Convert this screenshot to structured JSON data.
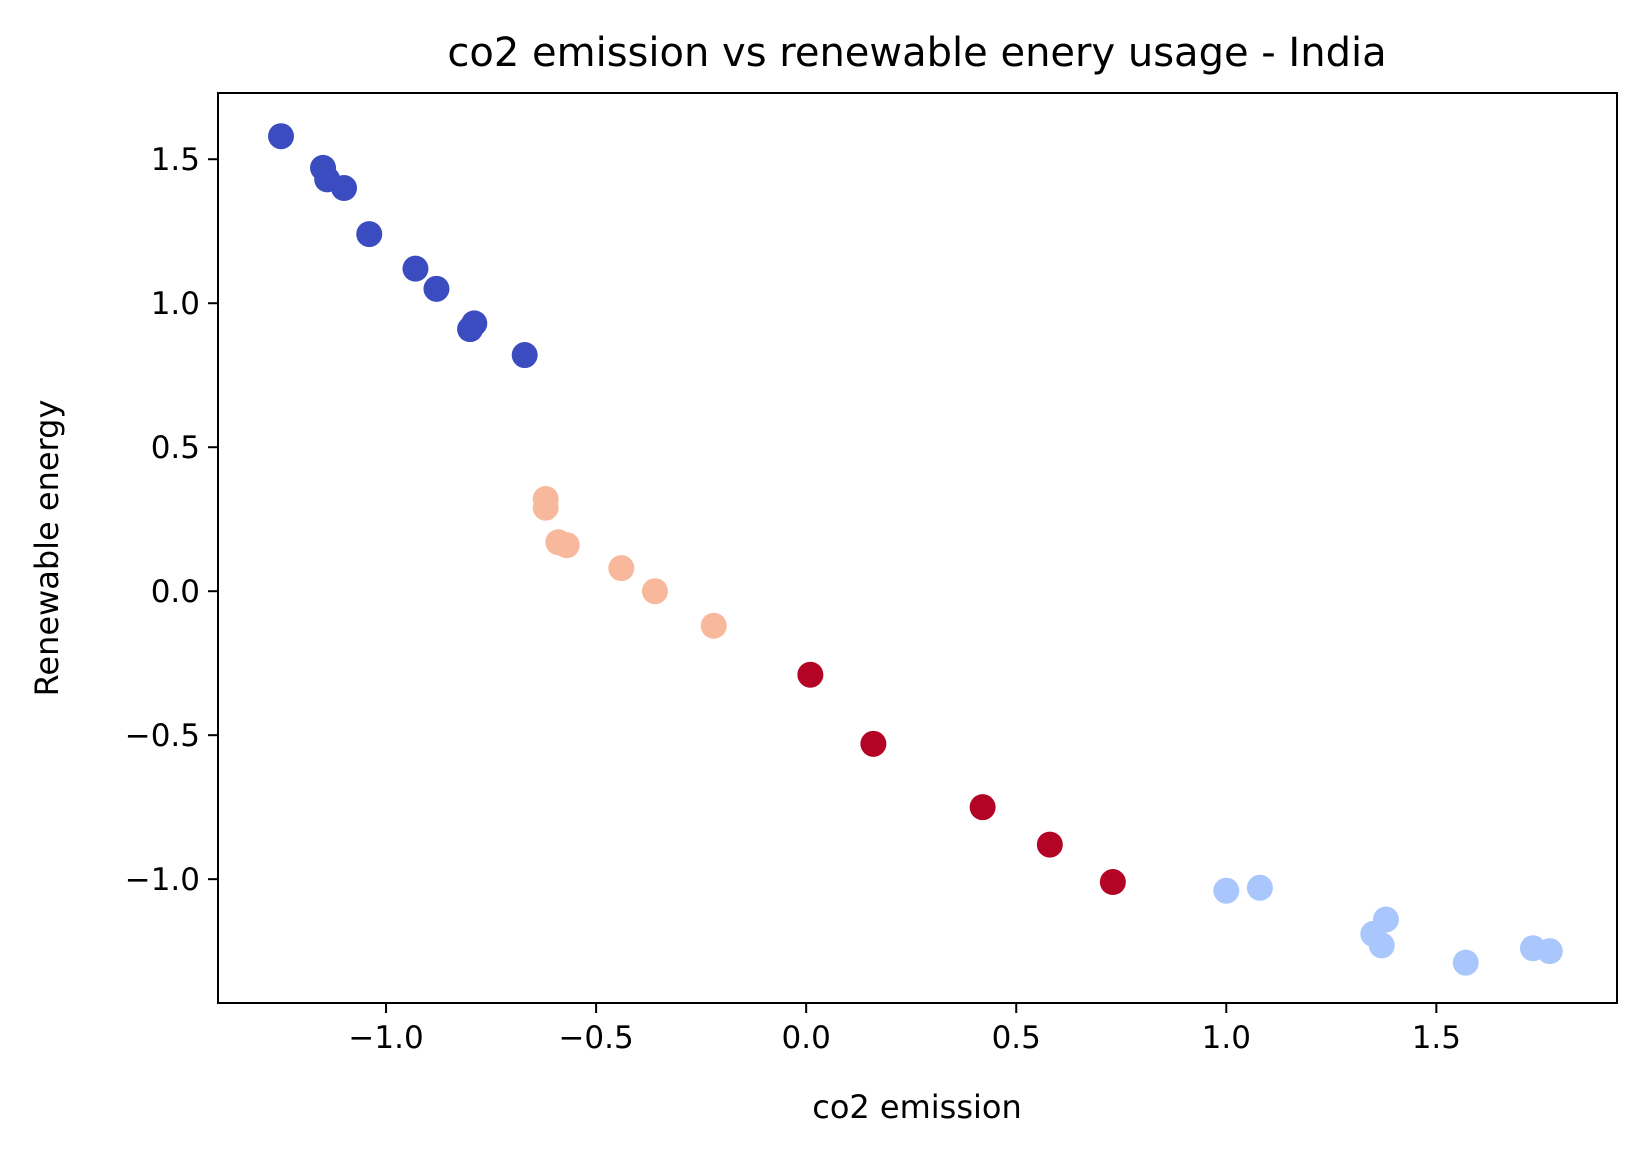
{
  "chart_data": {
    "type": "scatter",
    "title": "co2 emission vs renewable enery usage - India",
    "xlabel": "co2 emission",
    "ylabel": "Renewable energy",
    "xlim": [
      -1.4,
      1.93
    ],
    "ylim": [
      -1.43,
      1.73
    ],
    "xticks": [
      -1.0,
      -0.5,
      0.0,
      0.5,
      1.0,
      1.5
    ],
    "yticks": [
      -1.0,
      -0.5,
      0.0,
      0.5,
      1.0,
      1.5
    ],
    "xtick_labels": [
      "−1.0",
      "−0.5",
      "0.0",
      "0.5",
      "1.0",
      "1.5"
    ],
    "ytick_labels": [
      "−1.0",
      "−0.5",
      "0.0",
      "0.5",
      "1.0",
      "1.5"
    ],
    "grid": false,
    "legend": "none",
    "colors": {
      "cluster_dark_blue": "#3b4cc0",
      "cluster_light_blue": "#aac7fd",
      "cluster_peach": "#f7b89c",
      "cluster_red": "#b40426"
    },
    "series": [
      {
        "color": "#3b4cc0",
        "points": [
          [
            -1.25,
            1.58
          ],
          [
            -1.15,
            1.47
          ],
          [
            -1.14,
            1.43
          ],
          [
            -1.1,
            1.4
          ],
          [
            -1.04,
            1.24
          ],
          [
            -0.93,
            1.12
          ],
          [
            -0.88,
            1.05
          ],
          [
            -0.79,
            0.93
          ],
          [
            -0.8,
            0.91
          ],
          [
            -0.67,
            0.82
          ]
        ]
      },
      {
        "color": "#f7b89c",
        "points": [
          [
            -0.62,
            0.32
          ],
          [
            -0.62,
            0.29
          ],
          [
            -0.59,
            0.17
          ],
          [
            -0.57,
            0.16
          ],
          [
            -0.44,
            0.08
          ],
          [
            -0.36,
            -0.0
          ],
          [
            -0.22,
            -0.12
          ]
        ]
      },
      {
        "color": "#b40426",
        "points": [
          [
            0.01,
            -0.29
          ],
          [
            0.16,
            -0.53
          ],
          [
            0.42,
            -0.75
          ],
          [
            0.58,
            -0.88
          ],
          [
            0.73,
            -1.01
          ]
        ]
      },
      {
        "color": "#aac7fd",
        "points": [
          [
            1.0,
            -1.04
          ],
          [
            1.08,
            -1.03
          ],
          [
            1.35,
            -1.19
          ],
          [
            1.38,
            -1.14
          ],
          [
            1.37,
            -1.23
          ],
          [
            1.57,
            -1.29
          ],
          [
            1.73,
            -1.24
          ],
          [
            1.77,
            -1.25
          ]
        ]
      }
    ]
  }
}
